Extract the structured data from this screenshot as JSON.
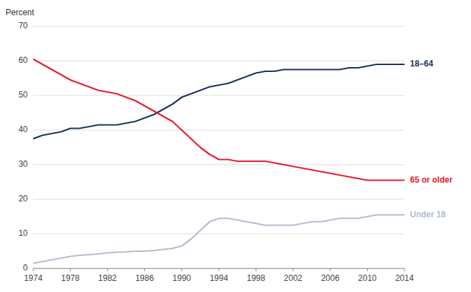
{
  "chart_data": {
    "type": "line",
    "ylabel": "Percent",
    "x": [
      1974,
      1975,
      1976,
      1977,
      1978,
      1979,
      1980,
      1981,
      1982,
      1983,
      1984,
      1985,
      1986,
      1987,
      1988,
      1989,
      1990,
      1991,
      1992,
      1993,
      1994,
      1995,
      1996,
      1997,
      1998,
      1999,
      2000,
      2001,
      2002,
      2003,
      2004,
      2005,
      2006,
      2007,
      2008,
      2009,
      2010,
      2011,
      2012,
      2013,
      2014
    ],
    "series": [
      {
        "name": "18–64",
        "color": "#1b2f5e",
        "values": [
          37.5,
          38.5,
          39.0,
          39.5,
          40.5,
          40.5,
          41.0,
          41.5,
          41.5,
          41.5,
          42.0,
          42.5,
          43.5,
          44.5,
          46.0,
          47.5,
          49.5,
          50.5,
          51.5,
          52.5,
          53.0,
          53.5,
          54.5,
          55.5,
          56.5,
          57.0,
          57.0,
          57.5,
          57.5,
          57.5,
          57.5,
          57.5,
          57.5,
          57.5,
          58.0,
          58.0,
          58.5,
          59.0,
          59.0,
          59.0,
          59.0
        ]
      },
      {
        "name": "65 or older",
        "color": "#e8192c",
        "values": [
          60.5,
          59.0,
          57.5,
          56.0,
          54.5,
          53.5,
          52.5,
          51.5,
          51.0,
          50.5,
          49.5,
          48.5,
          47.0,
          45.5,
          44.0,
          42.5,
          40.0,
          37.5,
          35.0,
          33.0,
          31.5,
          31.5,
          31.0,
          31.0,
          31.0,
          31.0,
          30.5,
          30.0,
          29.5,
          29.0,
          28.5,
          28.0,
          27.5,
          27.0,
          26.5,
          26.0,
          25.5,
          25.5,
          25.5,
          25.5,
          25.5
        ]
      },
      {
        "name": "Under 18",
        "color": "#b0bdd0",
        "values": [
          1.5,
          2.0,
          2.5,
          3.0,
          3.5,
          3.8,
          4.0,
          4.2,
          4.5,
          4.7,
          4.8,
          5.0,
          5.0,
          5.2,
          5.5,
          5.8,
          6.5,
          8.5,
          11.0,
          13.5,
          14.5,
          14.5,
          14.0,
          13.5,
          13.0,
          12.5,
          12.5,
          12.5,
          12.5,
          13.0,
          13.5,
          13.5,
          14.0,
          14.5,
          14.5,
          14.5,
          15.0,
          15.5,
          15.5,
          15.5,
          15.5
        ]
      }
    ],
    "xlim": [
      1974,
      2014
    ],
    "xticks": [
      1974,
      1978,
      1982,
      1986,
      1990,
      1994,
      1998,
      2002,
      2006,
      2010,
      2014
    ],
    "ylim": [
      0,
      70
    ],
    "yticks": [
      0,
      10,
      20,
      30,
      40,
      50,
      60,
      70
    ],
    "grid": true
  }
}
